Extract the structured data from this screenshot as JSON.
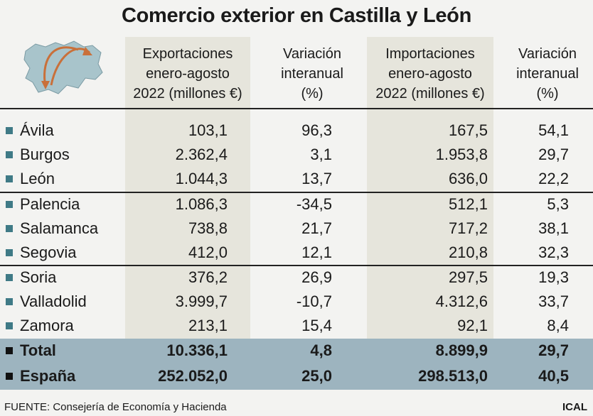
{
  "title": "Comercio exterior en Castilla y León",
  "headers": {
    "col1": [
      "Exportaciones",
      "enero-agosto",
      "2022 (millones €)"
    ],
    "col2": [
      "Variación",
      "interanual",
      "(%)"
    ],
    "col3": [
      "Importaciones",
      "enero-agosto",
      "2022 (millones €)"
    ],
    "col4": [
      "Variación",
      "interanual",
      "(%)"
    ]
  },
  "colors": {
    "shade": "#e6e5dc",
    "totals_band": "#9db4bf",
    "bullet": "#3f7a86",
    "map_fill": "#a8c4cb",
    "arrow": "#c9703a"
  },
  "icons": {
    "map": "castilla-leon-map-icon",
    "bullet": "square-bullet-icon"
  },
  "chart_data": {
    "type": "table",
    "columns": [
      "",
      "Exportaciones enero-agosto 2022 (millones €)",
      "Variación interanual (%)",
      "Importaciones enero-agosto 2022 (millones €)",
      "Variación interanual (%)"
    ],
    "rows": [
      {
        "name": "Ávila",
        "values": [
          "103,1",
          "96,3",
          "167,5",
          "54,1"
        ]
      },
      {
        "name": "Burgos",
        "values": [
          "2.362,4",
          "3,1",
          "1.953,8",
          "29,7"
        ]
      },
      {
        "name": "León",
        "values": [
          "1.044,3",
          "13,7",
          "636,0",
          "22,2"
        ]
      },
      {
        "name": "Palencia",
        "values": [
          "1.086,3",
          "-34,5",
          "512,1",
          "5,3"
        ]
      },
      {
        "name": "Salamanca",
        "values": [
          "738,8",
          "21,7",
          "717,2",
          "38,1"
        ]
      },
      {
        "name": "Segovia",
        "values": [
          "412,0",
          "12,1",
          "210,8",
          "32,3"
        ]
      },
      {
        "name": "Soria",
        "values": [
          "376,2",
          "26,9",
          "297,5",
          "19,3"
        ]
      },
      {
        "name": "Valladolid",
        "values": [
          "3.999,7",
          "-10,7",
          "4.312,6",
          "33,7"
        ]
      },
      {
        "name": "Zamora",
        "values": [
          "213,1",
          "15,4",
          "92,1",
          "8,4"
        ]
      }
    ],
    "totals": [
      {
        "name": "Total",
        "values": [
          "10.336,1",
          "4,8",
          "8.899,9",
          "29,7"
        ]
      },
      {
        "name": "España",
        "values": [
          "252.052,0",
          "25,0",
          "298.513,0",
          "40,5"
        ]
      }
    ]
  },
  "footer": "FUENTE: Consejería de Economía y Hacienda",
  "credit": "ICAL"
}
